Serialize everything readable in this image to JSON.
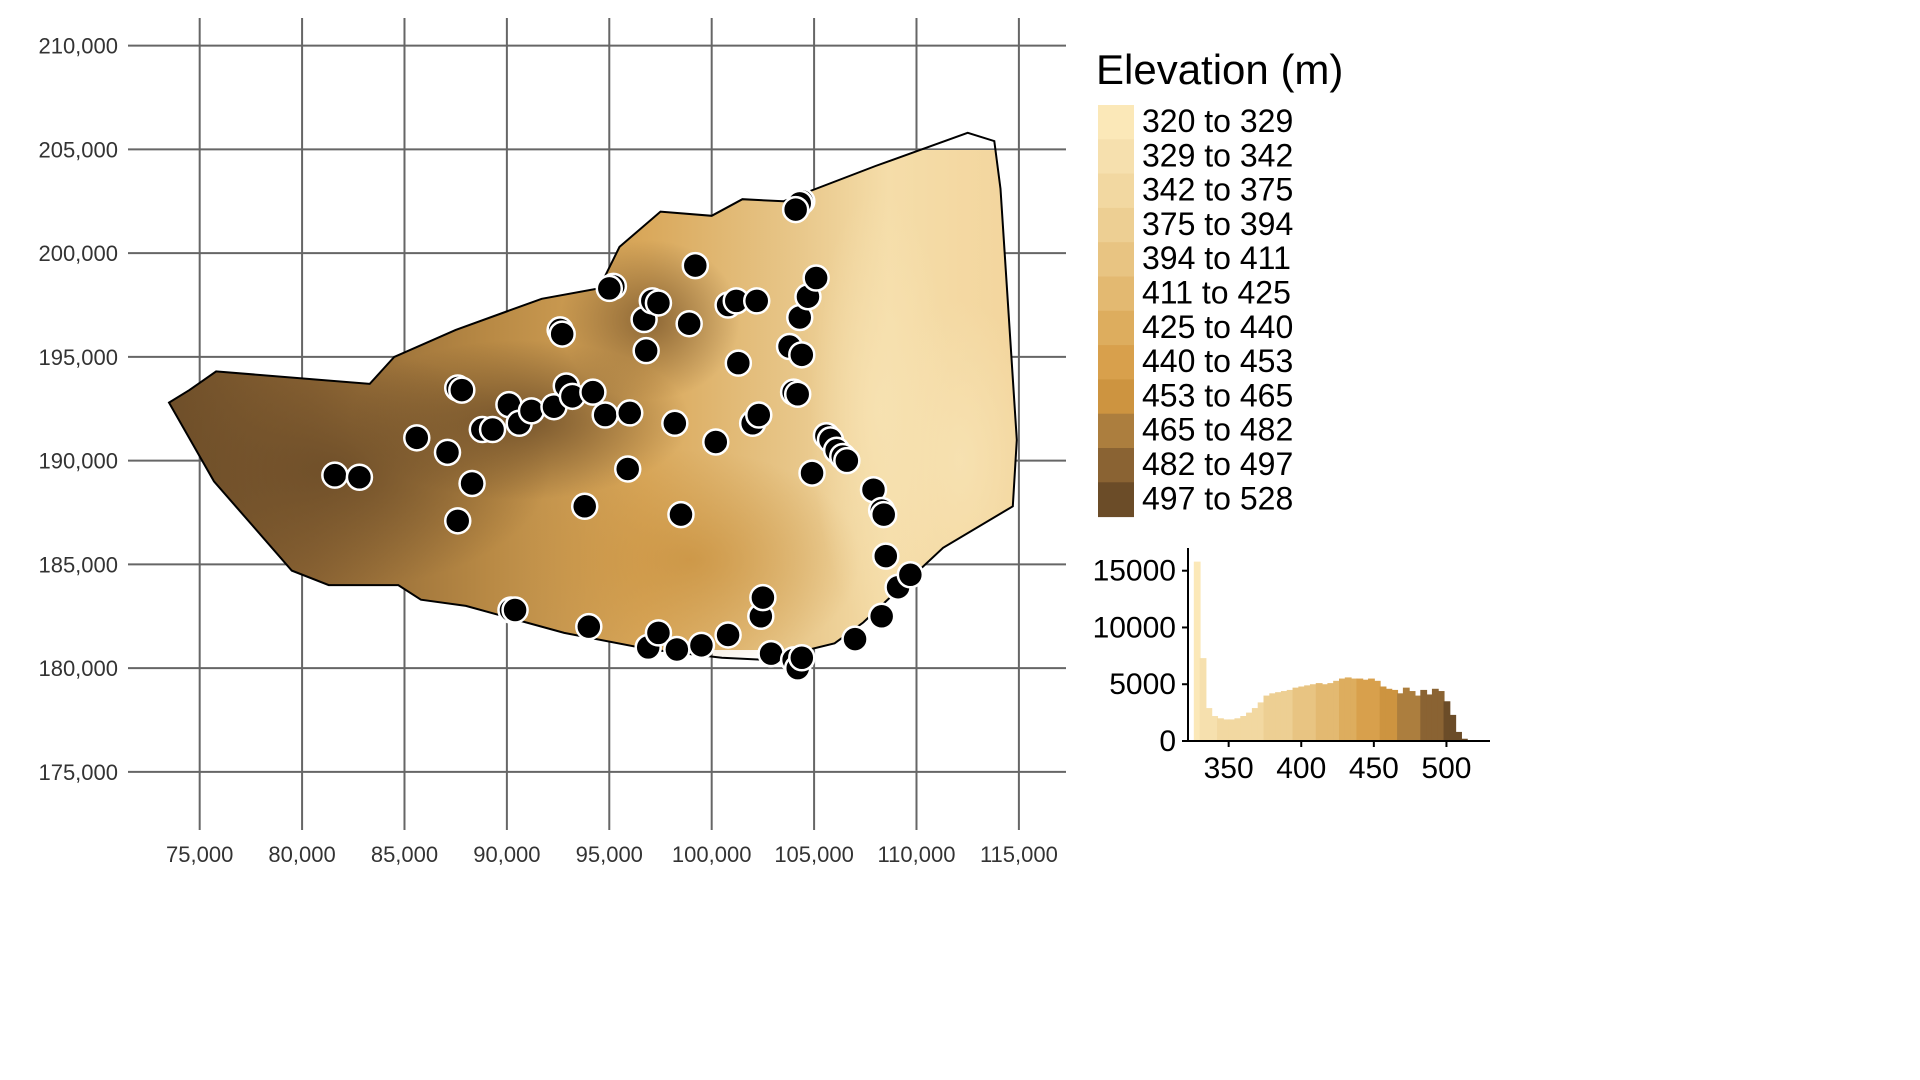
{
  "legend": {
    "title": "Elevation (m)",
    "classes": [
      {
        "label": "320 to 329",
        "color": "#FBE8B8"
      },
      {
        "label": "329 to 342",
        "color": "#F6E0AE"
      },
      {
        "label": "342 to 375",
        "color": "#F2D8A1"
      },
      {
        "label": "375 to 394",
        "color": "#EDCF93"
      },
      {
        "label": "394 to 411",
        "color": "#E8C482"
      },
      {
        "label": "411 to 425",
        "color": "#E3B971"
      },
      {
        "label": "425 to 440",
        "color": "#DDAD5E"
      },
      {
        "label": "440 to 453",
        "color": "#D8A04C"
      },
      {
        "label": "453 to 465",
        "color": "#CD9440"
      },
      {
        "label": "465 to 482",
        "color": "#AC7E3E"
      },
      {
        "label": "482 to 497",
        "color": "#8A6333"
      },
      {
        "label": "497 to 528",
        "color": "#6B4C28"
      }
    ]
  },
  "chart_data": [
    {
      "type": "map",
      "x_ticks": [
        "75,000",
        "80,000",
        "85,000",
        "90,000",
        "95,000",
        "100,000",
        "105,000",
        "110,000",
        "115,000"
      ],
      "y_ticks": [
        "210,000",
        "205,000",
        "200,000",
        "195,000",
        "190,000",
        "185,000",
        "180,000",
        "175,000"
      ],
      "xlim": [
        71500,
        117300
      ],
      "ylim": [
        172200,
        212200
      ],
      "grid": true,
      "boundary": [
        [
          73500,
          192800
        ],
        [
          74500,
          193400
        ],
        [
          75800,
          194300
        ],
        [
          83300,
          193700
        ],
        [
          84500,
          195000
        ],
        [
          87500,
          196300
        ],
        [
          91700,
          197800
        ],
        [
          94500,
          198300
        ],
        [
          95500,
          200300
        ],
        [
          97500,
          202000
        ],
        [
          100000,
          201800
        ],
        [
          101500,
          202600
        ],
        [
          103500,
          202500
        ],
        [
          108000,
          204200
        ],
        [
          112500,
          205800
        ],
        [
          113800,
          205400
        ],
        [
          114100,
          203100
        ],
        [
          114900,
          191000
        ],
        [
          114700,
          187800
        ],
        [
          111300,
          185800
        ],
        [
          107400,
          182200
        ],
        [
          106000,
          181200
        ],
        [
          102700,
          180400
        ],
        [
          100500,
          180500
        ],
        [
          97000,
          180900
        ],
        [
          92800,
          181700
        ],
        [
          88000,
          183000
        ],
        [
          85800,
          183300
        ],
        [
          84700,
          184000
        ],
        [
          82500,
          184000
        ],
        [
          81300,
          184000
        ],
        [
          79500,
          184700
        ],
        [
          75700,
          189000
        ]
      ],
      "points": [
        {
          "x": 81600,
          "y": 189300
        },
        {
          "x": 82800,
          "y": 189200
        },
        {
          "x": 85600,
          "y": 191100
        },
        {
          "x": 87100,
          "y": 190400
        },
        {
          "x": 87600,
          "y": 193500
        },
        {
          "x": 87800,
          "y": 193400
        },
        {
          "x": 87600,
          "y": 187100
        },
        {
          "x": 88300,
          "y": 188900
        },
        {
          "x": 88800,
          "y": 191500
        },
        {
          "x": 89300,
          "y": 191500
        },
        {
          "x": 90100,
          "y": 192700
        },
        {
          "x": 90600,
          "y": 191800
        },
        {
          "x": 91200,
          "y": 192400
        },
        {
          "x": 92300,
          "y": 192600
        },
        {
          "x": 92900,
          "y": 193600
        },
        {
          "x": 93200,
          "y": 193100
        },
        {
          "x": 94200,
          "y": 193300
        },
        {
          "x": 94800,
          "y": 192200
        },
        {
          "x": 95200,
          "y": 198400
        },
        {
          "x": 95000,
          "y": 198300
        },
        {
          "x": 96000,
          "y": 192300
        },
        {
          "x": 95900,
          "y": 189600
        },
        {
          "x": 96700,
          "y": 196800
        },
        {
          "x": 97100,
          "y": 197700
        },
        {
          "x": 96800,
          "y": 195300
        },
        {
          "x": 97400,
          "y": 197600
        },
        {
          "x": 98200,
          "y": 191800
        },
        {
          "x": 98900,
          "y": 196600
        },
        {
          "x": 99200,
          "y": 199400
        },
        {
          "x": 98500,
          "y": 187400
        },
        {
          "x": 92600,
          "y": 196300
        },
        {
          "x": 92700,
          "y": 196100
        },
        {
          "x": 93800,
          "y": 187800
        },
        {
          "x": 90200,
          "y": 182800
        },
        {
          "x": 90400,
          "y": 182800
        },
        {
          "x": 94000,
          "y": 182000
        },
        {
          "x": 96900,
          "y": 181000
        },
        {
          "x": 97400,
          "y": 181700
        },
        {
          "x": 98300,
          "y": 180900
        },
        {
          "x": 99500,
          "y": 181100
        },
        {
          "x": 100800,
          "y": 181600
        },
        {
          "x": 100200,
          "y": 190900
        },
        {
          "x": 100800,
          "y": 197500
        },
        {
          "x": 101200,
          "y": 197700
        },
        {
          "x": 101300,
          "y": 194700
        },
        {
          "x": 102000,
          "y": 191800
        },
        {
          "x": 102300,
          "y": 192200
        },
        {
          "x": 102200,
          "y": 197700
        },
        {
          "x": 102400,
          "y": 182500
        },
        {
          "x": 102500,
          "y": 183400
        },
        {
          "x": 102900,
          "y": 180700
        },
        {
          "x": 103800,
          "y": 195500
        },
        {
          "x": 104000,
          "y": 193300
        },
        {
          "x": 104200,
          "y": 193200
        },
        {
          "x": 104400,
          "y": 195100
        },
        {
          "x": 104300,
          "y": 196900
        },
        {
          "x": 104700,
          "y": 197900
        },
        {
          "x": 105100,
          "y": 198800
        },
        {
          "x": 104400,
          "y": 202500
        },
        {
          "x": 104300,
          "y": 202400
        },
        {
          "x": 104100,
          "y": 202100
        },
        {
          "x": 104000,
          "y": 180400
        },
        {
          "x": 104200,
          "y": 180000
        },
        {
          "x": 104400,
          "y": 180500
        },
        {
          "x": 104900,
          "y": 189400
        },
        {
          "x": 105600,
          "y": 191200
        },
        {
          "x": 105800,
          "y": 191000
        },
        {
          "x": 106100,
          "y": 190500
        },
        {
          "x": 106400,
          "y": 190200
        },
        {
          "x": 106600,
          "y": 190000
        },
        {
          "x": 107000,
          "y": 181400
        },
        {
          "x": 107900,
          "y": 188600
        },
        {
          "x": 108300,
          "y": 187600
        },
        {
          "x": 108400,
          "y": 187400
        },
        {
          "x": 108500,
          "y": 185400
        },
        {
          "x": 108300,
          "y": 182500
        },
        {
          "x": 109100,
          "y": 183900
        },
        {
          "x": 109700,
          "y": 184500
        }
      ]
    },
    {
      "type": "bar",
      "title": "",
      "xlabel": "",
      "ylabel": "",
      "x_ticks": [
        350,
        400,
        450,
        500
      ],
      "y_ticks": [
        0,
        5000,
        10000,
        15000
      ],
      "xlim": [
        322,
        530
      ],
      "ylim": [
        0,
        17000
      ],
      "bin_width": 5,
      "bins": [
        {
          "x": 328,
          "count": 15800
        },
        {
          "x": 332,
          "count": 7300
        },
        {
          "x": 336,
          "count": 2900
        },
        {
          "x": 340,
          "count": 2200
        },
        {
          "x": 344,
          "count": 2000
        },
        {
          "x": 348,
          "count": 1900
        },
        {
          "x": 352,
          "count": 1900
        },
        {
          "x": 356,
          "count": 2000
        },
        {
          "x": 360,
          "count": 2200
        },
        {
          "x": 364,
          "count": 2500
        },
        {
          "x": 368,
          "count": 2900
        },
        {
          "x": 372,
          "count": 3400
        },
        {
          "x": 376,
          "count": 4000
        },
        {
          "x": 380,
          "count": 4200
        },
        {
          "x": 384,
          "count": 4300
        },
        {
          "x": 388,
          "count": 4400
        },
        {
          "x": 392,
          "count": 4500
        },
        {
          "x": 396,
          "count": 4700
        },
        {
          "x": 400,
          "count": 4800
        },
        {
          "x": 404,
          "count": 4900
        },
        {
          "x": 408,
          "count": 5000
        },
        {
          "x": 412,
          "count": 5100
        },
        {
          "x": 416,
          "count": 5000
        },
        {
          "x": 420,
          "count": 5100
        },
        {
          "x": 424,
          "count": 5300
        },
        {
          "x": 428,
          "count": 5500
        },
        {
          "x": 432,
          "count": 5600
        },
        {
          "x": 436,
          "count": 5500
        },
        {
          "x": 440,
          "count": 5500
        },
        {
          "x": 444,
          "count": 5400
        },
        {
          "x": 448,
          "count": 5500
        },
        {
          "x": 452,
          "count": 5300
        },
        {
          "x": 456,
          "count": 4800
        },
        {
          "x": 460,
          "count": 4600
        },
        {
          "x": 464,
          "count": 4500
        },
        {
          "x": 468,
          "count": 4200
        },
        {
          "x": 472,
          "count": 4700
        },
        {
          "x": 476,
          "count": 4400
        },
        {
          "x": 480,
          "count": 4000
        },
        {
          "x": 484,
          "count": 4500
        },
        {
          "x": 488,
          "count": 4100
        },
        {
          "x": 492,
          "count": 4600
        },
        {
          "x": 496,
          "count": 4400
        },
        {
          "x": 500,
          "count": 3500
        },
        {
          "x": 504,
          "count": 2300
        },
        {
          "x": 508,
          "count": 800
        },
        {
          "x": 512,
          "count": 200
        }
      ]
    }
  ]
}
